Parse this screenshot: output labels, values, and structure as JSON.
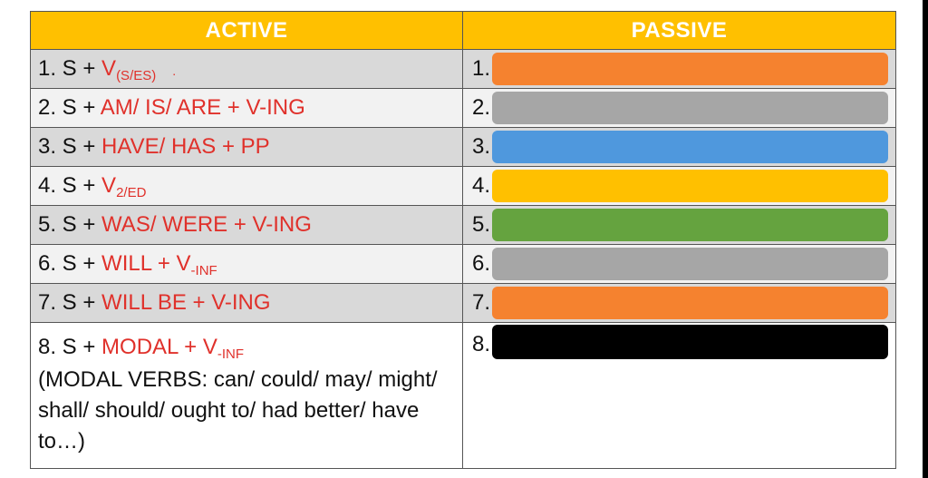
{
  "header": {
    "active": "ACTIVE",
    "passive": "PASSIVE"
  },
  "rows": [
    {
      "prefix": "1. S + ",
      "red": "V",
      "sub": "(S/ES)",
      "mark": ".",
      "num": "1.",
      "color": "#f5822f"
    },
    {
      "prefix": "2. S + ",
      "red": "AM/ IS/ ARE + V-ING",
      "sub": "",
      "mark": "",
      "num": "2.",
      "color": "#a6a6a6"
    },
    {
      "prefix": "3. S + ",
      "red": "HAVE/ HAS + PP",
      "sub": "",
      "mark": "",
      "num": "3.",
      "color": "#4f98dd"
    },
    {
      "prefix": "4. S + ",
      "red": "V",
      "sub": "2/ED",
      "mark": "",
      "num": "4.",
      "color": "#ffc000"
    },
    {
      "prefix": "5. S + ",
      "red": "WAS/ WERE + V-ING",
      "sub": "",
      "mark": "",
      "num": "5.",
      "color": "#65a33f"
    },
    {
      "prefix": "6. S + ",
      "red": "WILL + V",
      "sub": "-INF",
      "mark": "",
      "num": "6.",
      "color": "#a6a6a6"
    },
    {
      "prefix": "7. S + ",
      "red": "WILL BE + V-ING",
      "sub": "",
      "mark": "",
      "num": "7.",
      "color": "#f5822f"
    },
    {
      "prefix": "8. S + ",
      "red": "MODAL + V",
      "sub": "-INF",
      "mark": "",
      "num": "8.",
      "color": "#000000",
      "note": "(MODAL VERBS: can/ could/ may/ might/ shall/ should/ ought to/ had better/ have to…)"
    }
  ]
}
